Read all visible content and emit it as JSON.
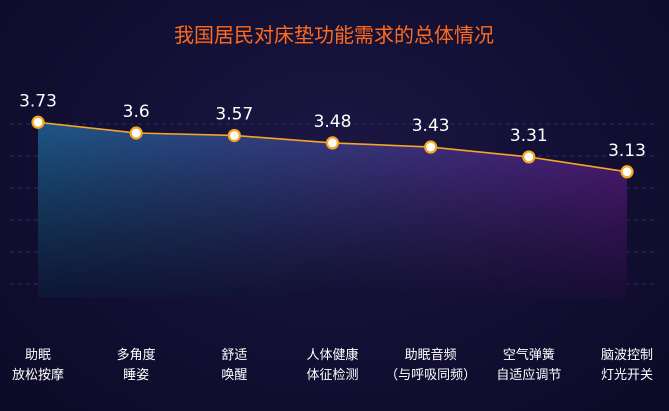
{
  "chart_data": {
    "type": "area",
    "title": "我国居民对床垫功能需求的总体情况",
    "categories": [
      [
        "助眠",
        "放松按摩"
      ],
      [
        "多角度",
        "睡姿"
      ],
      [
        "舒适",
        "唤醒"
      ],
      [
        "人体健康",
        "体征检测"
      ],
      [
        "助眠音频",
        "（与呼吸同频）"
      ],
      [
        "空气弹簧",
        "自适应调节"
      ],
      [
        "脑波控制",
        "灯光开关"
      ]
    ],
    "values": [
      3.73,
      3.6,
      3.57,
      3.48,
      3.43,
      3.31,
      3.13
    ],
    "value_labels": [
      "3.73",
      "3.6",
      "3.57",
      "3.48",
      "3.43",
      "3.31",
      "3.13"
    ],
    "ylim": [
      1.6,
      4.0
    ],
    "grid": "horizontal dashed",
    "colors": {
      "title": "#ff6a1c",
      "line": "#f5a623",
      "marker_fill": "#ffffff",
      "marker_stroke": "#f5a623",
      "area_left": "#1e5a8c",
      "area_right": "#5a1f88",
      "text": "#ffffff",
      "grid": "#2f2c5a"
    }
  }
}
